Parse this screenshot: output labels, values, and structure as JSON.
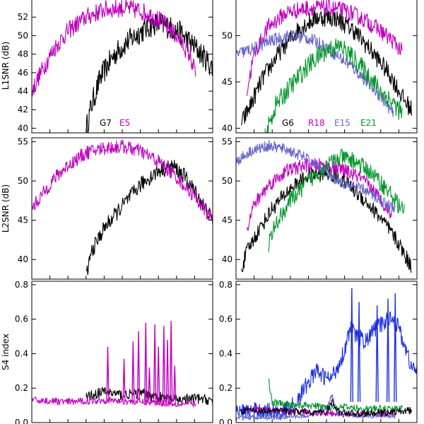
{
  "chart_data": [
    {
      "type": "line",
      "panel": "top-left",
      "ylabel": "L1SNR (dB)",
      "ylim": [
        39.5,
        54
      ],
      "yticks": [
        40,
        42,
        44,
        46,
        48,
        50,
        52
      ],
      "xlim": [
        0,
        1
      ],
      "legend": "bottom-center",
      "series": [
        {
          "name": "G7",
          "color": "#000000",
          "noise": 1.3,
          "points": [
            [
              0.3,
              39.8
            ],
            [
              0.33,
              42.5
            ],
            [
              0.38,
              45.5
            ],
            [
              0.45,
              47.8
            ],
            [
              0.52,
              49.2
            ],
            [
              0.6,
              50.4
            ],
            [
              0.68,
              51.3
            ],
            [
              0.75,
              51.0
            ],
            [
              0.82,
              50.3
            ],
            [
              0.9,
              48.8
            ],
            [
              0.96,
              47.5
            ],
            [
              1.0,
              46.5
            ]
          ]
        },
        {
          "name": "E5",
          "color": "#bf00bf",
          "noise": 1.0,
          "points": [
            [
              0.0,
              44.0
            ],
            [
              0.05,
              46.0
            ],
            [
              0.12,
              48.5
            ],
            [
              0.2,
              50.5
            ],
            [
              0.3,
              52.0
            ],
            [
              0.4,
              52.8
            ],
            [
              0.5,
              53.0
            ],
            [
              0.6,
              52.7
            ],
            [
              0.68,
              52.0
            ],
            [
              0.75,
              51.0
            ],
            [
              0.82,
              49.5
            ],
            [
              0.87,
              48.0
            ],
            [
              0.905,
              46.0
            ]
          ]
        }
      ]
    },
    {
      "type": "line",
      "panel": "top-right",
      "ylim": [
        39.5,
        54
      ],
      "yticks": [
        40,
        45,
        50
      ],
      "xlim": [
        0,
        1
      ],
      "legend": "bottom-center",
      "series": [
        {
          "name": "G6",
          "color": "#000000",
          "noise": 1.0,
          "points": [
            [
              0.03,
              40.5
            ],
            [
              0.08,
              42.5
            ],
            [
              0.15,
              45.5
            ],
            [
              0.25,
              48.5
            ],
            [
              0.35,
              50.8
            ],
            [
              0.45,
              52.0
            ],
            [
              0.55,
              51.9
            ],
            [
              0.65,
              50.6
            ],
            [
              0.75,
              48.3
            ],
            [
              0.85,
              45.8
            ],
            [
              0.93,
              43.0
            ],
            [
              0.97,
              42.0
            ]
          ]
        },
        {
          "name": "R18",
          "color": "#bf00bf",
          "noise": 0.9,
          "points": [
            [
              0.06,
              44.0
            ],
            [
              0.1,
              48.0
            ],
            [
              0.18,
              51.0
            ],
            [
              0.28,
              52.5
            ],
            [
              0.4,
              53.0
            ],
            [
              0.52,
              53.0
            ],
            [
              0.62,
              52.6
            ],
            [
              0.72,
              51.6
            ],
            [
              0.8,
              50.5
            ],
            [
              0.88,
              49.2
            ],
            [
              0.92,
              48.2
            ]
          ]
        },
        {
          "name": "E15",
          "color": "#6666cc",
          "noise": 0.7,
          "points": [
            [
              0.0,
              48.0
            ],
            [
              0.1,
              48.6
            ],
            [
              0.2,
              49.5
            ],
            [
              0.3,
              50.0
            ],
            [
              0.4,
              49.7
            ],
            [
              0.48,
              49.0
            ],
            [
              0.55,
              48.0
            ],
            [
              0.65,
              46.5
            ],
            [
              0.75,
              44.5
            ],
            [
              0.82,
              43.0
            ],
            [
              0.87,
              41.5
            ]
          ]
        },
        {
          "name": "E21",
          "color": "#00962a",
          "noise": 1.1,
          "points": [
            [
              0.16,
              39.0
            ],
            [
              0.22,
              42.5
            ],
            [
              0.3,
              44.5
            ],
            [
              0.4,
              46.8
            ],
            [
              0.5,
              48.5
            ],
            [
              0.58,
              48.8
            ],
            [
              0.65,
              47.5
            ],
            [
              0.72,
              46.0
            ],
            [
              0.8,
              44.0
            ],
            [
              0.88,
              42.5
            ],
            [
              0.92,
              41.5
            ]
          ]
        }
      ]
    },
    {
      "type": "line",
      "panel": "middle-left",
      "ylabel": "L2SNR (dB)",
      "ylim": [
        37.5,
        55.5
      ],
      "yticks": [
        40,
        45,
        50,
        55
      ],
      "xlim": [
        0,
        1
      ],
      "series": [
        {
          "name": "",
          "color": "#000000",
          "noise": 1.0,
          "points": [
            [
              0.3,
              37.8
            ],
            [
              0.33,
              41.0
            ],
            [
              0.4,
              44.0
            ],
            [
              0.5,
              46.8
            ],
            [
              0.6,
              49.5
            ],
            [
              0.7,
              51.3
            ],
            [
              0.78,
              51.9
            ],
            [
              0.85,
              50.5
            ],
            [
              0.92,
              48.0
            ],
            [
              1.0,
              45.0
            ]
          ]
        },
        {
          "name": "",
          "color": "#bf00bf",
          "noise": 0.9,
          "points": [
            [
              0.0,
              46.5
            ],
            [
              0.05,
              48.0
            ],
            [
              0.12,
              50.2
            ],
            [
              0.2,
              52.0
            ],
            [
              0.3,
              53.6
            ],
            [
              0.4,
              54.2
            ],
            [
              0.5,
              54.4
            ],
            [
              0.6,
              53.8
            ],
            [
              0.7,
              52.5
            ],
            [
              0.8,
              50.5
            ],
            [
              0.9,
              48.0
            ],
            [
              1.0,
              45.0
            ]
          ]
        }
      ]
    },
    {
      "type": "line",
      "panel": "middle-right",
      "ylim": [
        37.5,
        55.5
      ],
      "yticks": [
        40,
        45,
        50,
        55
      ],
      "xlim": [
        0,
        1
      ],
      "series": [
        {
          "name": "",
          "color": "#000000",
          "noise": 1.0,
          "points": [
            [
              0.03,
              38.8
            ],
            [
              0.06,
              41.0
            ],
            [
              0.12,
              43.5
            ],
            [
              0.2,
              46.5
            ],
            [
              0.3,
              49.0
            ],
            [
              0.4,
              50.7
            ],
            [
              0.5,
              51.0
            ],
            [
              0.6,
              50.0
            ],
            [
              0.7,
              47.8
            ],
            [
              0.8,
              45.3
            ],
            [
              0.9,
              42.0
            ],
            [
              0.97,
              39.0
            ]
          ]
        },
        {
          "name": "",
          "color": "#bf00bf",
          "noise": 0.9,
          "points": [
            [
              0.06,
              44.0
            ],
            [
              0.1,
              47.0
            ],
            [
              0.18,
              49.5
            ],
            [
              0.28,
              51.3
            ],
            [
              0.38,
              52.0
            ],
            [
              0.48,
              52.0
            ],
            [
              0.58,
              51.5
            ],
            [
              0.68,
              50.5
            ],
            [
              0.76,
              48.8
            ],
            [
              0.82,
              47.0
            ],
            [
              0.86,
              45.8
            ]
          ]
        },
        {
          "name": "",
          "color": "#6666cc",
          "noise": 0.7,
          "points": [
            [
              0.0,
              52.5
            ],
            [
              0.08,
              53.8
            ],
            [
              0.18,
              54.5
            ],
            [
              0.28,
              54.0
            ],
            [
              0.38,
              53.0
            ],
            [
              0.48,
              51.5
            ],
            [
              0.55,
              50.0
            ],
            [
              0.62,
              49.5
            ],
            [
              0.7,
              49.0
            ],
            [
              0.8,
              47.5
            ],
            [
              0.88,
              46.5
            ]
          ]
        },
        {
          "name": "",
          "color": "#00962a",
          "noise": 1.1,
          "points": [
            [
              0.18,
              42.0
            ],
            [
              0.22,
              44.5
            ],
            [
              0.3,
              47.5
            ],
            [
              0.4,
              50.0
            ],
            [
              0.5,
              52.0
            ],
            [
              0.58,
              53.0
            ],
            [
              0.66,
              52.5
            ],
            [
              0.75,
              51.0
            ],
            [
              0.85,
              48.5
            ],
            [
              0.93,
              46.0
            ]
          ]
        }
      ]
    },
    {
      "type": "line",
      "panel": "bottom-left",
      "ylabel": "S4 index",
      "ylim": [
        0,
        0.82
      ],
      "yticks": [
        0.0,
        0.2,
        0.4,
        0.6,
        0.8
      ],
      "xlim": [
        0,
        1
      ],
      "series": [
        {
          "name": "",
          "color": "#000000",
          "noise": 0.03,
          "points": [
            [
              0.3,
              0.15
            ],
            [
              0.4,
              0.18
            ],
            [
              0.5,
              0.16
            ],
            [
              0.6,
              0.17
            ],
            [
              0.7,
              0.15
            ],
            [
              0.8,
              0.13
            ],
            [
              0.9,
              0.14
            ],
            [
              1.0,
              0.13
            ]
          ]
        },
        {
          "name": "",
          "color": "#bf00bf",
          "noise": 0.02,
          "points": [
            [
              0.0,
              0.13
            ],
            [
              0.2,
              0.12
            ],
            [
              0.4,
              0.13
            ],
            [
              0.6,
              0.12
            ],
            [
              0.8,
              0.11
            ],
            [
              0.905,
              0.11
            ]
          ]
        }
      ],
      "spikes": [
        {
          "color": "#bf00bf",
          "at": [
            [
              0.42,
              0.44
            ],
            [
              0.51,
              0.37
            ],
            [
              0.56,
              0.47
            ],
            [
              0.59,
              0.53
            ],
            [
              0.63,
              0.58
            ],
            [
              0.65,
              0.32
            ],
            [
              0.68,
              0.57
            ],
            [
              0.7,
              0.44
            ],
            [
              0.73,
              0.56
            ],
            [
              0.75,
              0.48
            ],
            [
              0.77,
              0.59
            ],
            [
              0.79,
              0.33
            ]
          ]
        }
      ]
    },
    {
      "type": "line",
      "panel": "bottom-right",
      "ylim": [
        0,
        0.82
      ],
      "yticks": [
        0.0,
        0.2,
        0.4,
        0.6,
        0.8
      ],
      "xlim": [
        0,
        1
      ],
      "series": [
        {
          "name": "",
          "color": "#1a2fe0",
          "noise": 0.05,
          "points": [
            [
              0.0,
              0.06
            ],
            [
              0.15,
              0.07
            ],
            [
              0.25,
              0.06
            ],
            [
              0.32,
              0.1
            ],
            [
              0.38,
              0.2
            ],
            [
              0.44,
              0.3
            ],
            [
              0.48,
              0.27
            ],
            [
              0.52,
              0.25
            ],
            [
              0.56,
              0.32
            ],
            [
              0.6,
              0.42
            ],
            [
              0.63,
              0.55
            ],
            [
              0.67,
              0.5
            ],
            [
              0.72,
              0.47
            ],
            [
              0.77,
              0.55
            ],
            [
              0.82,
              0.58
            ],
            [
              0.86,
              0.62
            ],
            [
              0.9,
              0.55
            ],
            [
              0.94,
              0.42
            ],
            [
              0.97,
              0.32
            ],
            [
              1.0,
              0.3
            ]
          ]
        },
        {
          "name": "",
          "color": "#00962a",
          "noise": 0.02,
          "points": [
            [
              0.18,
              0.25
            ],
            [
              0.2,
              0.12
            ],
            [
              0.3,
              0.1
            ],
            [
              0.4,
              0.1
            ],
            [
              0.5,
              0.09
            ],
            [
              0.6,
              0.09
            ],
            [
              0.7,
              0.08
            ],
            [
              0.8,
              0.08
            ],
            [
              0.92,
              0.08
            ]
          ]
        },
        {
          "name": "",
          "color": "#bf00bf",
          "noise": 0.02,
          "points": [
            [
              0.06,
              0.08
            ],
            [
              0.2,
              0.07
            ],
            [
              0.4,
              0.06
            ],
            [
              0.6,
              0.05
            ],
            [
              0.8,
              0.05
            ],
            [
              0.88,
              0.05
            ]
          ]
        },
        {
          "name": "",
          "color": "#6666cc",
          "noise": 0.015,
          "points": [
            [
              0.0,
              0.03
            ],
            [
              0.2,
              0.03
            ],
            [
              0.4,
              0.04
            ],
            [
              0.5,
              0.08
            ],
            [
              0.53,
              0.16
            ],
            [
              0.56,
              0.05
            ],
            [
              0.7,
              0.04
            ],
            [
              0.88,
              0.04
            ]
          ]
        },
        {
          "name": "",
          "color": "#000000",
          "noise": 0.02,
          "points": [
            [
              0.03,
              0.07
            ],
            [
              0.2,
              0.07
            ],
            [
              0.4,
              0.06
            ],
            [
              0.5,
              0.06
            ],
            [
              0.53,
              0.12
            ],
            [
              0.57,
              0.06
            ],
            [
              0.7,
              0.05
            ],
            [
              0.85,
              0.06
            ],
            [
              0.97,
              0.07
            ]
          ]
        }
      ],
      "spikes": [
        {
          "color": "#1a2fe0",
          "at": [
            [
              0.64,
              0.78
            ],
            [
              0.68,
              0.7
            ],
            [
              0.78,
              0.68
            ],
            [
              0.84,
              0.72
            ],
            [
              0.88,
              0.75
            ]
          ]
        }
      ]
    }
  ]
}
